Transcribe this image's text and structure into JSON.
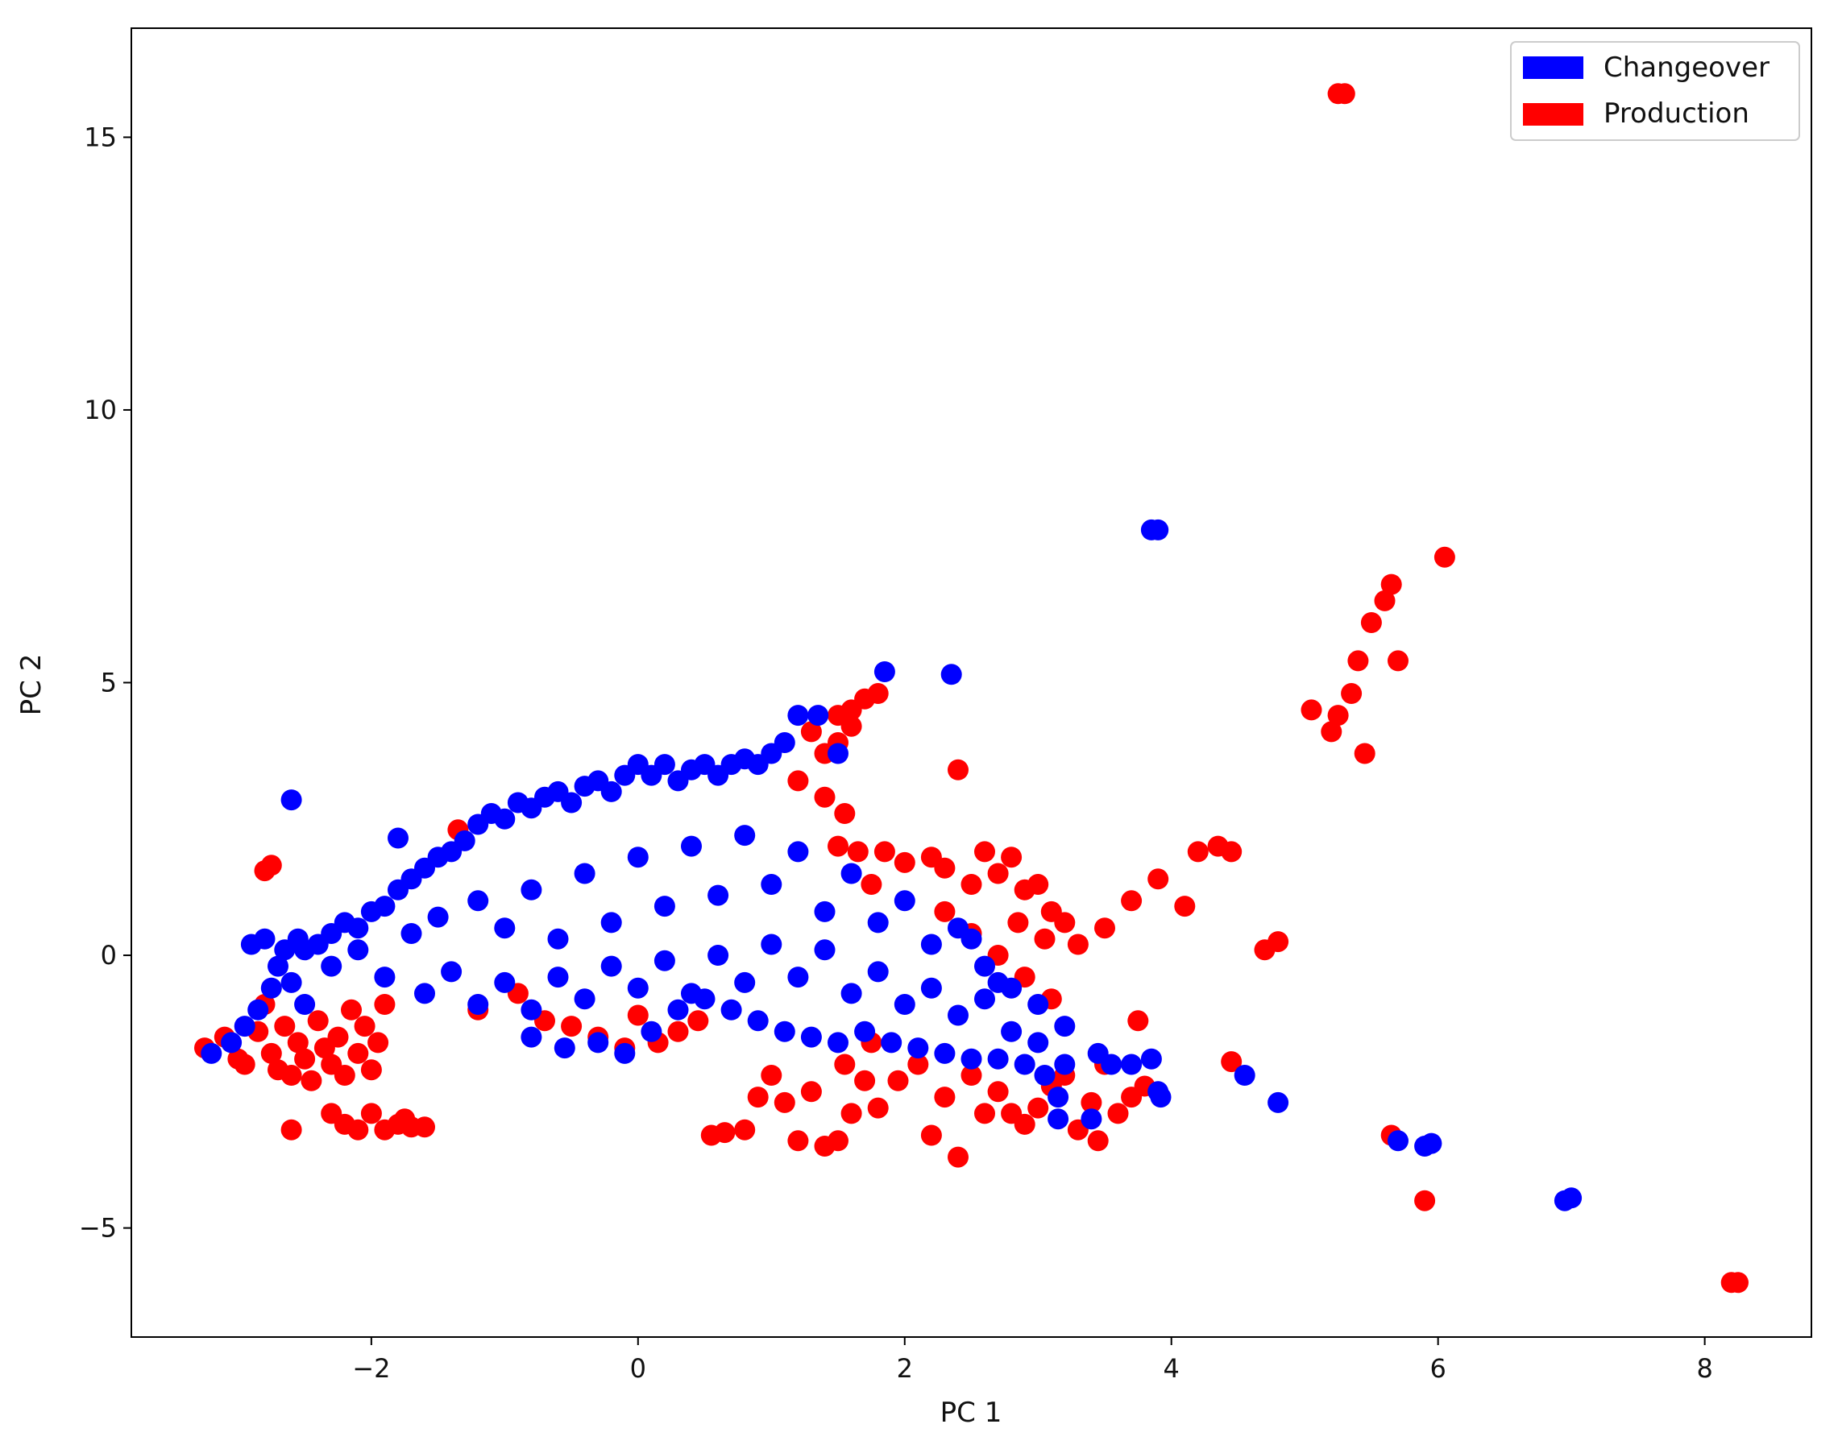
{
  "chart_data": {
    "type": "scatter",
    "title": "",
    "xlabel": "PC 1",
    "ylabel": "PC 2",
    "xlim": [
      -3.8,
      8.8
    ],
    "ylim": [
      -7,
      17
    ],
    "xticks": [
      -2,
      0,
      2,
      4,
      6,
      8
    ],
    "yticks": [
      -5,
      0,
      5,
      10,
      15
    ],
    "xtick_labels": [
      "−2",
      "0",
      "2",
      "4",
      "6",
      "8"
    ],
    "ytick_labels": [
      "−5",
      "0",
      "5",
      "10",
      "15"
    ],
    "grid": false,
    "legend_position": "top-right",
    "series": [
      {
        "name": "Production",
        "color": "#ff0000",
        "points": [
          [
            -3.25,
            -1.7
          ],
          [
            -3.1,
            -1.5
          ],
          [
            -3.0,
            -1.9
          ],
          [
            -2.95,
            -2.0
          ],
          [
            -2.85,
            -1.4
          ],
          [
            -2.8,
            -0.9
          ],
          [
            -2.75,
            -1.8
          ],
          [
            -2.7,
            -2.1
          ],
          [
            -2.65,
            -1.3
          ],
          [
            -2.6,
            -2.2
          ],
          [
            -2.55,
            -1.6
          ],
          [
            -2.5,
            -1.9
          ],
          [
            -2.45,
            -2.3
          ],
          [
            -2.4,
            -1.2
          ],
          [
            -2.35,
            -1.7
          ],
          [
            -2.3,
            -2.0
          ],
          [
            -2.25,
            -1.5
          ],
          [
            -2.2,
            -2.2
          ],
          [
            -2.15,
            -1.0
          ],
          [
            -2.1,
            -1.8
          ],
          [
            -2.05,
            -1.3
          ],
          [
            -2.0,
            -2.1
          ],
          [
            -1.95,
            -1.6
          ],
          [
            -1.9,
            -0.9
          ],
          [
            -2.8,
            1.55
          ],
          [
            -2.75,
            1.65
          ],
          [
            -2.6,
            -3.2
          ],
          [
            -2.3,
            -2.9
          ],
          [
            -2.2,
            -3.1
          ],
          [
            -2.1,
            -3.2
          ],
          [
            -2.0,
            -2.9
          ],
          [
            -1.9,
            -3.2
          ],
          [
            -1.8,
            -3.1
          ],
          [
            -1.75,
            -3.0
          ],
          [
            -1.7,
            -3.15
          ],
          [
            -1.6,
            -3.15
          ],
          [
            -1.35,
            2.3
          ],
          [
            -1.2,
            -1.0
          ],
          [
            -0.9,
            -0.7
          ],
          [
            -0.7,
            -1.2
          ],
          [
            -0.5,
            -1.3
          ],
          [
            -0.3,
            -1.5
          ],
          [
            -0.1,
            -1.7
          ],
          [
            0.0,
            -1.1
          ],
          [
            0.15,
            -1.6
          ],
          [
            0.3,
            -1.4
          ],
          [
            0.45,
            -1.2
          ],
          [
            0.55,
            -3.3
          ],
          [
            0.65,
            -3.25
          ],
          [
            0.8,
            -3.2
          ],
          [
            0.9,
            -2.6
          ],
          [
            1.0,
            -2.2
          ],
          [
            1.1,
            -2.7
          ],
          [
            1.2,
            -3.4
          ],
          [
            1.3,
            -2.5
          ],
          [
            1.4,
            -3.5
          ],
          [
            1.5,
            -3.4
          ],
          [
            1.55,
            -2.0
          ],
          [
            1.6,
            -2.9
          ],
          [
            1.7,
            -2.3
          ],
          [
            1.75,
            -1.6
          ],
          [
            1.8,
            -2.8
          ],
          [
            1.95,
            -2.3
          ],
          [
            2.1,
            -2.0
          ],
          [
            2.2,
            -3.3
          ],
          [
            2.3,
            -2.6
          ],
          [
            2.4,
            -3.7
          ],
          [
            2.5,
            -2.2
          ],
          [
            2.6,
            -2.9
          ],
          [
            2.7,
            -2.5
          ],
          [
            2.8,
            -2.9
          ],
          [
            2.9,
            -3.1
          ],
          [
            3.0,
            -2.8
          ],
          [
            3.1,
            -2.4
          ],
          [
            3.2,
            -2.2
          ],
          [
            3.3,
            -3.2
          ],
          [
            3.4,
            -2.7
          ],
          [
            3.45,
            -3.4
          ],
          [
            3.5,
            -2.0
          ],
          [
            3.6,
            -2.9
          ],
          [
            3.7,
            -2.6
          ],
          [
            3.75,
            -1.2
          ],
          [
            3.8,
            -2.4
          ],
          [
            1.3,
            4.1
          ],
          [
            1.5,
            4.4
          ],
          [
            1.6,
            4.5
          ],
          [
            1.7,
            4.7
          ],
          [
            1.8,
            4.8
          ],
          [
            1.6,
            4.2
          ],
          [
            1.4,
            3.7
          ],
          [
            1.5,
            3.9
          ],
          [
            2.4,
            3.4
          ],
          [
            1.2,
            3.2
          ],
          [
            1.4,
            2.9
          ],
          [
            1.55,
            2.6
          ],
          [
            1.5,
            2.0
          ],
          [
            1.65,
            1.9
          ],
          [
            1.75,
            1.3
          ],
          [
            1.85,
            1.9
          ],
          [
            2.0,
            1.7
          ],
          [
            2.2,
            1.8
          ],
          [
            2.3,
            1.6
          ],
          [
            2.5,
            1.3
          ],
          [
            2.6,
            1.9
          ],
          [
            2.7,
            1.5
          ],
          [
            2.8,
            1.8
          ],
          [
            2.9,
            1.2
          ],
          [
            3.0,
            1.3
          ],
          [
            3.1,
            0.8
          ],
          [
            3.2,
            0.6
          ],
          [
            3.3,
            0.2
          ],
          [
            3.5,
            0.5
          ],
          [
            3.7,
            1.0
          ],
          [
            3.9,
            1.4
          ],
          [
            4.1,
            0.9
          ],
          [
            4.2,
            1.9
          ],
          [
            4.35,
            2.0
          ],
          [
            4.45,
            1.9
          ],
          [
            2.3,
            0.8
          ],
          [
            2.5,
            0.4
          ],
          [
            2.7,
            0.0
          ],
          [
            2.9,
            -0.4
          ],
          [
            3.1,
            -0.8
          ],
          [
            2.85,
            0.6
          ],
          [
            3.05,
            0.3
          ],
          [
            4.7,
            0.1
          ],
          [
            4.8,
            0.25
          ],
          [
            4.45,
            -1.95
          ],
          [
            5.65,
            -3.3
          ],
          [
            5.9,
            -4.5
          ],
          [
            8.2,
            -6.0
          ],
          [
            8.25,
            -6.0
          ],
          [
            5.05,
            4.5
          ],
          [
            5.2,
            4.1
          ],
          [
            5.25,
            4.4
          ],
          [
            5.35,
            4.8
          ],
          [
            5.4,
            5.4
          ],
          [
            5.45,
            3.7
          ],
          [
            5.5,
            6.1
          ],
          [
            5.6,
            6.5
          ],
          [
            5.65,
            6.8
          ],
          [
            5.7,
            5.4
          ],
          [
            6.05,
            7.3
          ],
          [
            5.25,
            15.8
          ],
          [
            5.3,
            15.8
          ]
        ]
      },
      {
        "name": "Changeover",
        "color": "#0000ff",
        "points": [
          [
            -3.2,
            -1.8
          ],
          [
            -3.05,
            -1.6
          ],
          [
            -2.95,
            -1.3
          ],
          [
            -2.85,
            -1.0
          ],
          [
            -2.75,
            -0.6
          ],
          [
            -2.7,
            -0.2
          ],
          [
            -2.65,
            0.1
          ],
          [
            -2.6,
            -0.5
          ],
          [
            -2.55,
            0.3
          ],
          [
            -2.5,
            -0.9
          ],
          [
            -2.4,
            0.2
          ],
          [
            -2.3,
            0.4
          ],
          [
            -2.2,
            0.6
          ],
          [
            -2.1,
            0.5
          ],
          [
            -2.0,
            0.8
          ],
          [
            -1.9,
            0.9
          ],
          [
            -1.8,
            1.2
          ],
          [
            -1.7,
            1.4
          ],
          [
            -1.6,
            1.6
          ],
          [
            -1.5,
            1.8
          ],
          [
            -1.4,
            1.9
          ],
          [
            -1.3,
            2.1
          ],
          [
            -1.2,
            2.4
          ],
          [
            -1.1,
            2.6
          ],
          [
            -1.0,
            2.5
          ],
          [
            -0.9,
            2.8
          ],
          [
            -0.8,
            2.7
          ],
          [
            -0.7,
            2.9
          ],
          [
            -0.6,
            3.0
          ],
          [
            -0.5,
            2.8
          ],
          [
            -0.4,
            3.1
          ],
          [
            -0.3,
            3.2
          ],
          [
            -0.2,
            3.0
          ],
          [
            -0.1,
            3.3
          ],
          [
            0.0,
            3.5
          ],
          [
            0.1,
            3.3
          ],
          [
            0.2,
            3.5
          ],
          [
            0.3,
            3.2
          ],
          [
            0.4,
            3.4
          ],
          [
            0.5,
            3.5
          ],
          [
            0.6,
            3.3
          ],
          [
            0.7,
            3.5
          ],
          [
            0.8,
            3.6
          ],
          [
            0.9,
            3.5
          ],
          [
            1.0,
            3.7
          ],
          [
            1.1,
            3.9
          ],
          [
            1.2,
            4.4
          ],
          [
            1.35,
            4.4
          ],
          [
            1.5,
            3.7
          ],
          [
            1.85,
            5.2
          ],
          [
            2.35,
            5.15
          ],
          [
            -2.6,
            2.85
          ],
          [
            -1.8,
            2.15
          ],
          [
            -1.2,
            1.0
          ],
          [
            -1.0,
            0.5
          ],
          [
            -0.8,
            1.2
          ],
          [
            -0.6,
            0.3
          ],
          [
            -0.4,
            1.5
          ],
          [
            -0.2,
            0.6
          ],
          [
            0.0,
            1.8
          ],
          [
            0.2,
            0.9
          ],
          [
            0.4,
            2.0
          ],
          [
            0.6,
            1.1
          ],
          [
            0.8,
            2.2
          ],
          [
            1.0,
            1.3
          ],
          [
            1.2,
            1.9
          ],
          [
            1.4,
            0.8
          ],
          [
            1.6,
            1.5
          ],
          [
            1.8,
            0.6
          ],
          [
            2.0,
            1.0
          ],
          [
            2.2,
            0.2
          ],
          [
            2.4,
            0.5
          ],
          [
            2.6,
            -0.2
          ],
          [
            2.8,
            -0.6
          ],
          [
            3.0,
            -0.9
          ],
          [
            3.2,
            -1.3
          ],
          [
            -1.6,
            -0.7
          ],
          [
            -1.4,
            -0.3
          ],
          [
            -1.2,
            -0.9
          ],
          [
            -1.0,
            -0.5
          ],
          [
            -0.8,
            -1.0
          ],
          [
            -0.6,
            -0.4
          ],
          [
            -0.4,
            -0.8
          ],
          [
            -0.2,
            -0.2
          ],
          [
            0.0,
            -0.6
          ],
          [
            0.2,
            -0.1
          ],
          [
            0.4,
            -0.7
          ],
          [
            0.6,
            0.0
          ],
          [
            0.8,
            -0.5
          ],
          [
            1.0,
            0.2
          ],
          [
            1.2,
            -0.4
          ],
          [
            1.4,
            0.1
          ],
          [
            1.6,
            -0.7
          ],
          [
            1.8,
            -0.3
          ],
          [
            2.0,
            -0.9
          ],
          [
            2.2,
            -0.6
          ],
          [
            2.4,
            -1.1
          ],
          [
            2.6,
            -0.8
          ],
          [
            2.8,
            -1.4
          ],
          [
            3.0,
            -1.6
          ],
          [
            3.2,
            -2.0
          ],
          [
            -0.8,
            -1.5
          ],
          [
            -0.55,
            -1.7
          ],
          [
            -0.3,
            -1.6
          ],
          [
            -0.1,
            -1.8
          ],
          [
            0.1,
            -1.4
          ],
          [
            0.3,
            -1.0
          ],
          [
            0.5,
            -0.8
          ],
          [
            0.7,
            -1.0
          ],
          [
            0.9,
            -1.2
          ],
          [
            1.1,
            -1.4
          ],
          [
            1.3,
            -1.5
          ],
          [
            1.5,
            -1.6
          ],
          [
            1.7,
            -1.4
          ],
          [
            1.9,
            -1.6
          ],
          [
            2.1,
            -1.7
          ],
          [
            2.3,
            -1.8
          ],
          [
            2.5,
            -1.9
          ],
          [
            2.7,
            -1.9
          ],
          [
            2.9,
            -2.0
          ],
          [
            3.05,
            -2.2
          ],
          [
            3.15,
            -2.6
          ],
          [
            3.15,
            -3.0
          ],
          [
            3.4,
            -3.0
          ],
          [
            3.45,
            -1.8
          ],
          [
            3.55,
            -2.0
          ],
          [
            3.7,
            -2.0
          ],
          [
            3.85,
            -1.9
          ],
          [
            3.9,
            -2.5
          ],
          [
            3.92,
            -2.6
          ],
          [
            3.85,
            7.8
          ],
          [
            3.9,
            7.8
          ],
          [
            4.55,
            -2.2
          ],
          [
            4.8,
            -2.7
          ],
          [
            5.7,
            -3.4
          ],
          [
            5.9,
            -3.5
          ],
          [
            5.95,
            -3.45
          ],
          [
            6.95,
            -4.5
          ],
          [
            7.0,
            -4.45
          ],
          [
            2.5,
            0.3
          ],
          [
            2.7,
            -0.5
          ],
          [
            -2.9,
            0.2
          ],
          [
            -2.8,
            0.3
          ],
          [
            -2.5,
            0.1
          ],
          [
            -2.3,
            -0.2
          ],
          [
            -2.1,
            0.1
          ],
          [
            -1.9,
            -0.4
          ],
          [
            -1.7,
            0.4
          ],
          [
            -1.5,
            0.7
          ]
        ]
      }
    ]
  }
}
